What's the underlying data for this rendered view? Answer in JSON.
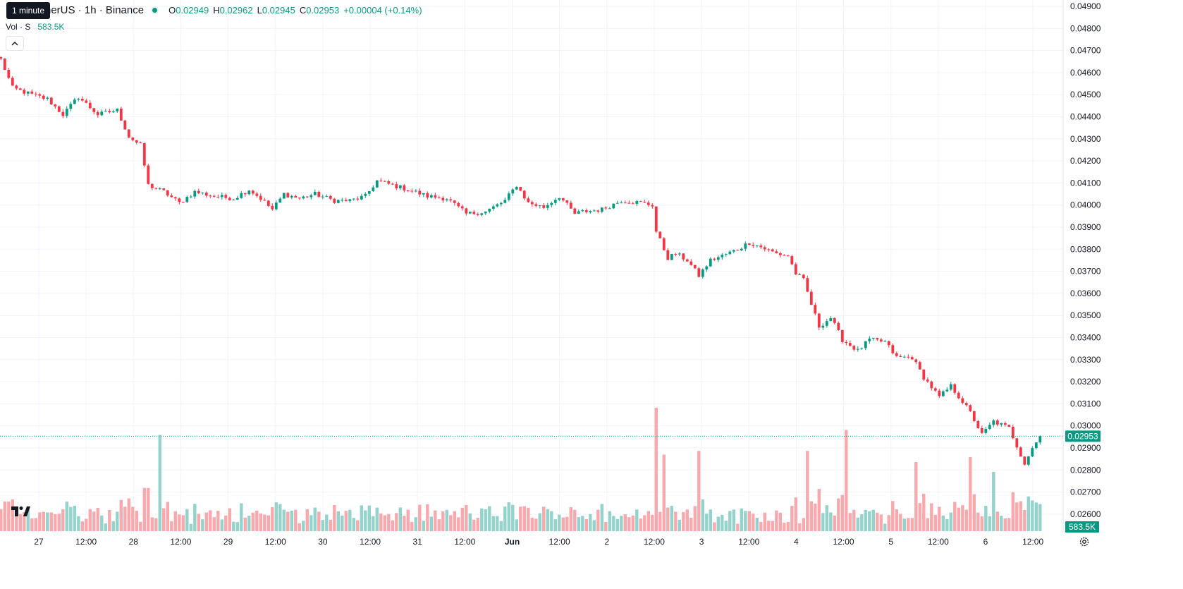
{
  "legend": {
    "tooltip": "1 minute",
    "symbol_title": "herUS · 1h · Binance",
    "open_label": "O",
    "open": "0.02949",
    "high_label": "H",
    "high": "0.02962",
    "low_label": "L",
    "low": "0.02945",
    "close_label": "C",
    "close": "0.02953",
    "change": "+0.00004 (+0.14%)",
    "volume_label": "Vol · S",
    "volume": "583.5K"
  },
  "colors": {
    "up": "#089981",
    "down": "#f23645",
    "up_volume": "#94d3cb",
    "down_volume": "#f7a9ae",
    "grid": "#f0f3fa",
    "axis_text": "#131722"
  },
  "icons": {
    "collapse": "chevron-up-icon",
    "logo": "tradingview-logo",
    "settings": "gear-icon"
  },
  "chart_data": {
    "type": "candlestick",
    "interval": "1h",
    "x_tick_labels": [
      "27",
      "12:00",
      "28",
      "12:00",
      "29",
      "12:00",
      "30",
      "12:00",
      "31",
      "12:00",
      "Jun",
      "12:00",
      "2",
      "12:00",
      "3",
      "12:00",
      "4",
      "12:00",
      "5",
      "12:00",
      "6",
      "12:00"
    ],
    "y_ticks": [
      "0.04900",
      "0.04800",
      "0.04700",
      "0.04600",
      "0.04500",
      "0.04400",
      "0.04300",
      "0.04200",
      "0.04100",
      "0.04000",
      "0.03900",
      "0.03800",
      "0.03700",
      "0.03600",
      "0.03500",
      "0.03400",
      "0.03300",
      "0.03200",
      "0.03100",
      "0.03000",
      "0.02900",
      "0.02800",
      "0.02700",
      "0.02600"
    ],
    "ylim": [
      0.02575,
      0.04925
    ],
    "last_price_label": "0.02953",
    "last_price": 0.02953,
    "last_volume_label": "583.5K",
    "grid": true,
    "close_path": [
      [
        0,
        0.0466
      ],
      [
        3,
        0.0453
      ],
      [
        8,
        0.045
      ],
      [
        12,
        0.0448
      ],
      [
        16,
        0.0441
      ],
      [
        20,
        0.0449
      ],
      [
        25,
        0.0441
      ],
      [
        30,
        0.0443
      ],
      [
        33,
        0.0431
      ],
      [
        36,
        0.0427
      ],
      [
        37,
        0.0418
      ],
      [
        38,
        0.0409
      ],
      [
        42,
        0.0406
      ],
      [
        46,
        0.0401
      ],
      [
        50,
        0.0406
      ],
      [
        55,
        0.0404
      ],
      [
        60,
        0.0403
      ],
      [
        64,
        0.0407
      ],
      [
        67,
        0.0403
      ],
      [
        70,
        0.0398
      ],
      [
        73,
        0.0405
      ],
      [
        77,
        0.0403
      ],
      [
        81,
        0.0405
      ],
      [
        86,
        0.0402
      ],
      [
        90,
        0.0402
      ],
      [
        94,
        0.0404
      ],
      [
        97,
        0.0411
      ],
      [
        101,
        0.0409
      ],
      [
        105,
        0.0407
      ],
      [
        110,
        0.0404
      ],
      [
        115,
        0.0403
      ],
      [
        120,
        0.0396
      ],
      [
        125,
        0.0397
      ],
      [
        130,
        0.0402
      ],
      [
        133,
        0.0409
      ],
      [
        136,
        0.0401
      ],
      [
        140,
        0.0399
      ],
      [
        144,
        0.0404
      ],
      [
        148,
        0.0396
      ],
      [
        150,
        0.0397
      ],
      [
        155,
        0.0398
      ],
      [
        160,
        0.0402
      ],
      [
        165,
        0.0401
      ],
      [
        168,
        0.04
      ],
      [
        169,
        0.0388
      ],
      [
        172,
        0.0376
      ],
      [
        174,
        0.0378
      ],
      [
        177,
        0.0375
      ],
      [
        180,
        0.0368
      ],
      [
        183,
        0.0375
      ],
      [
        186,
        0.0377
      ],
      [
        190,
        0.038
      ],
      [
        193,
        0.0383
      ],
      [
        196,
        0.0381
      ],
      [
        200,
        0.0378
      ],
      [
        203,
        0.0377
      ],
      [
        205,
        0.0369
      ],
      [
        207,
        0.0366
      ],
      [
        209,
        0.0355
      ],
      [
        211,
        0.0345
      ],
      [
        214,
        0.0349
      ],
      [
        217,
        0.0339
      ],
      [
        221,
        0.0334
      ],
      [
        224,
        0.0339
      ],
      [
        228,
        0.0338
      ],
      [
        231,
        0.0331
      ],
      [
        235,
        0.0331
      ],
      [
        238,
        0.0322
      ],
      [
        242,
        0.0313
      ],
      [
        245,
        0.0318
      ],
      [
        248,
        0.0311
      ],
      [
        250,
        0.0306
      ],
      [
        253,
        0.0296
      ],
      [
        256,
        0.0302
      ],
      [
        260,
        0.0299
      ],
      [
        262,
        0.0291
      ],
      [
        264,
        0.0283
      ],
      [
        266,
        0.029
      ],
      [
        268,
        0.0295
      ]
    ],
    "volume_spikes": [
      [
        41,
        0.78
      ],
      [
        169,
        1.0
      ],
      [
        171,
        0.62
      ],
      [
        180,
        0.65
      ],
      [
        208,
        0.65
      ],
      [
        218,
        0.82
      ],
      [
        236,
        0.56
      ],
      [
        250,
        0.6
      ],
      [
        256,
        0.48
      ]
    ]
  }
}
